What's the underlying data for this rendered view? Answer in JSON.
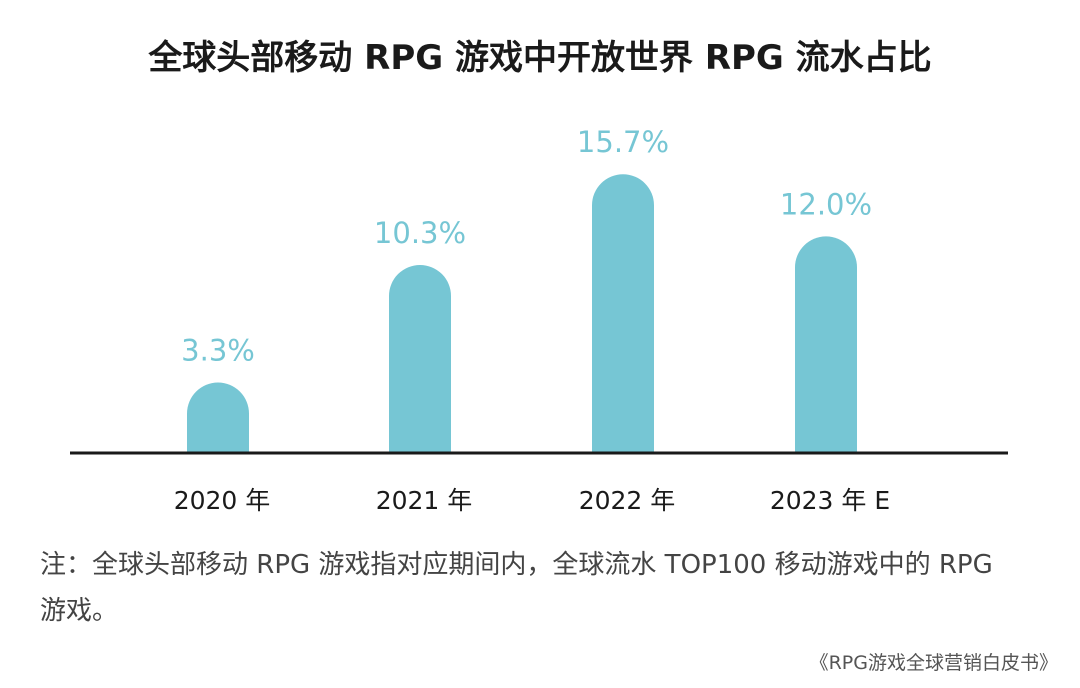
{
  "chart_data": {
    "type": "bar",
    "title": "全球头部移动 RPG 游戏中开放世界 RPG 流水占比",
    "categories": [
      "2020 年",
      "2021 年",
      "2022 年",
      "2023 年 E"
    ],
    "values": [
      3.3,
      10.3,
      15.7,
      12.0
    ],
    "data_labels": [
      "3.3%",
      "10.3%",
      "15.7%",
      "12.0%"
    ],
    "xlabel": "",
    "ylabel": "",
    "unit": "%",
    "grid": false,
    "bar_color": "#76c6d4",
    "label_color": "#76c6d4",
    "axis_color": "#1a1a1a"
  },
  "note": "注：全球头部移动 RPG 游戏指对应期间内，全球流水 TOP100 移动游戏中的 RPG 游戏。",
  "source": "《RPG游戏全球营销白皮书》"
}
